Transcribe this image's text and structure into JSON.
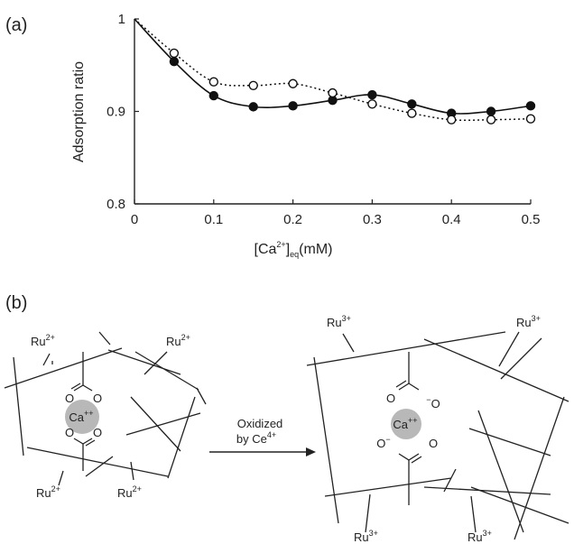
{
  "panel_a": {
    "label": "(a)"
  },
  "panel_b": {
    "label": "(b)"
  },
  "chart_data": {
    "type": "line",
    "title": "",
    "xlabel_main": "[Ca",
    "xlabel_sup": "2+",
    "xlabel_close": "]",
    "xlabel_sub": "eq",
    "xlabel_unit": "(mM)",
    "ylabel": "Adsorption ratio",
    "xlim": [
      0,
      0.5
    ],
    "ylim": [
      0.8,
      1.0
    ],
    "xticks": [
      "0",
      "0.1",
      "0.2",
      "0.3",
      "0.4",
      "0.5"
    ],
    "yticks": [
      "0.8",
      "0.9",
      "1"
    ],
    "grid": false,
    "series": [
      {
        "marker": "filled-circle",
        "line": "solid",
        "x": [
          0.05,
          0.1,
          0.15,
          0.2,
          0.25,
          0.3,
          0.35,
          0.4,
          0.45,
          0.5
        ],
        "y": [
          0.954,
          0.917,
          0.905,
          0.906,
          0.912,
          0.918,
          0.908,
          0.898,
          0.9,
          0.906
        ]
      },
      {
        "marker": "open-circle",
        "line": "dotted",
        "x": [
          0.05,
          0.1,
          0.15,
          0.2,
          0.25,
          0.3,
          0.35,
          0.4,
          0.45,
          0.5
        ],
        "y": [
          0.963,
          0.932,
          0.928,
          0.93,
          0.92,
          0.908,
          0.898,
          0.891,
          0.891,
          0.892
        ]
      }
    ]
  },
  "diagram": {
    "arrow_label_1": "Oxidized",
    "arrow_label_2_prefix": "by Ce",
    "arrow_label_2_sup": "4+",
    "left": {
      "ca_label": "Ca",
      "ca_sup": "++",
      "oxygen": "O",
      "ru": "Ru",
      "ru_sup": "2+"
    },
    "right": {
      "ca_label": "Ca",
      "ca_sup": "++",
      "oxygen": "O",
      "minus": "−",
      "ru": "Ru",
      "ru_sup": "3+"
    }
  }
}
